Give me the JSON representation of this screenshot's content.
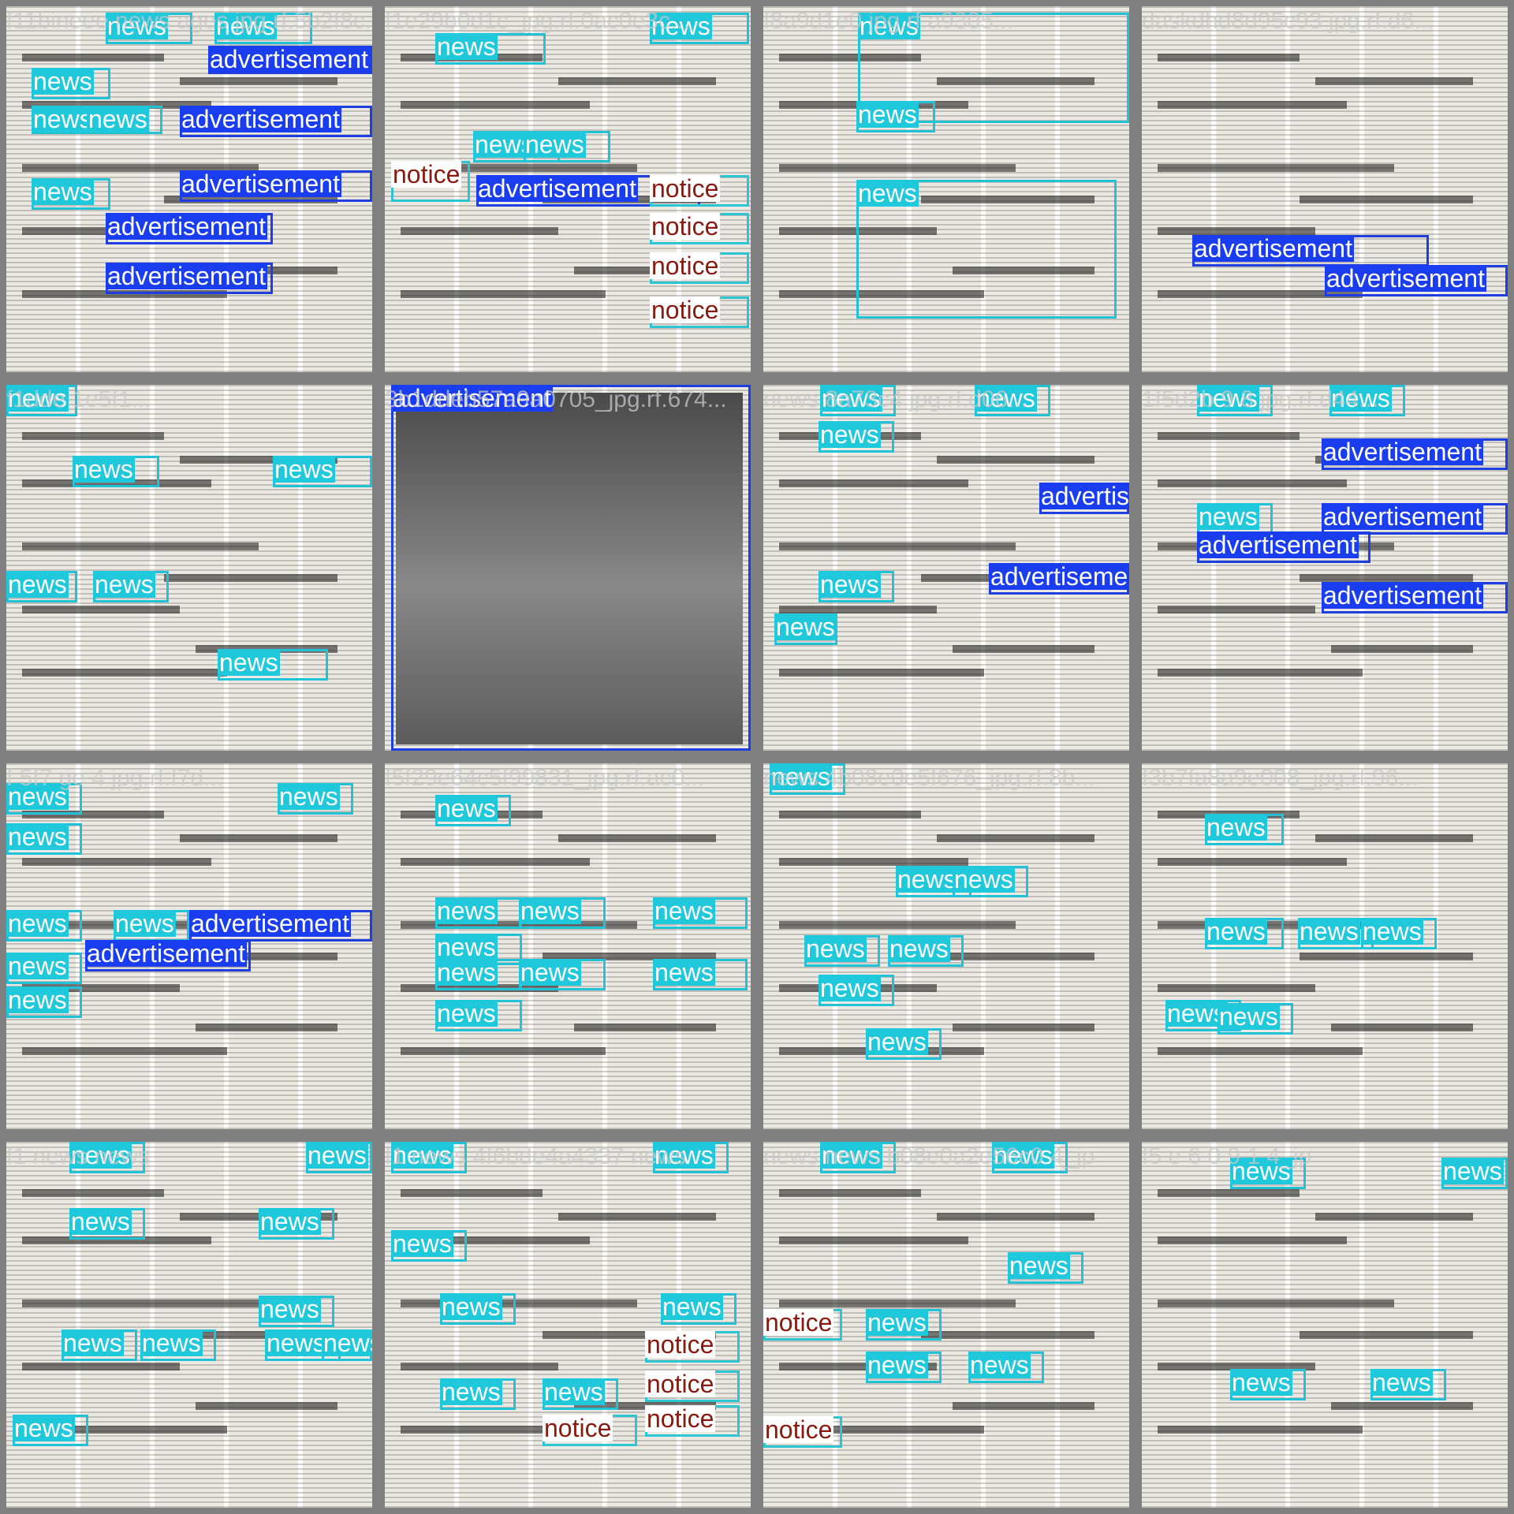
{
  "colors": {
    "background": "#808080",
    "news": "#20c8dc",
    "advertisement": "#1a3df0",
    "notice_text": "#8a1a10"
  },
  "tiles": [
    {
      "title": "f11bineee news ages jpg.rf.5b2f8c...",
      "boxes": [
        {
          "cls": "news",
          "text": "news"
        },
        {
          "cls": "news",
          "text": "news"
        },
        {
          "cls": "advertisement",
          "text": "advertisement"
        },
        {
          "cls": "news",
          "text": "news"
        },
        {
          "cls": "news",
          "text": "news"
        },
        {
          "cls": "news",
          "text": "news"
        },
        {
          "cls": "advertisement",
          "text": "advertisement"
        },
        {
          "cls": "advertisement",
          "text": "advertisement"
        },
        {
          "cls": "news",
          "text": "news"
        },
        {
          "cls": "advertisement",
          "text": "advertisement"
        },
        {
          "cls": "advertisement",
          "text": "advertisement"
        }
      ]
    },
    {
      "title": "f1e29b0d1c_jpg.rf.0ac0e3c...",
      "boxes": [
        {
          "cls": "news",
          "text": "news"
        },
        {
          "cls": "news",
          "text": "news"
        },
        {
          "cls": "news",
          "text": "news"
        },
        {
          "cls": "news",
          "text": "news"
        },
        {
          "cls": "notice",
          "text": "notice"
        },
        {
          "cls": "advertisement",
          "text": "advertisement"
        },
        {
          "cls": "notice",
          "text": "notice"
        },
        {
          "cls": "notice",
          "text": "notice"
        },
        {
          "cls": "notice",
          "text": "notice"
        },
        {
          "cls": "notice",
          "text": "notice"
        }
      ]
    },
    {
      "title": "f8a9d1e0 jpg.rf.a9305...",
      "boxes": [
        {
          "cls": "news",
          "text": "news"
        },
        {
          "cls": "news",
          "text": "news"
        },
        {
          "cls": "news",
          "text": "news"
        }
      ]
    },
    {
      "title": "daskdhd8d95c93 jpg.rf.d6...",
      "boxes": [
        {
          "cls": "advertisement",
          "text": "advertisement"
        },
        {
          "cls": "advertisement",
          "text": "advertisement"
        }
      ]
    },
    {
      "title": "f1dde 1e5f1...",
      "boxes": [
        {
          "cls": "news",
          "text": "news"
        },
        {
          "cls": "news",
          "text": "news"
        },
        {
          "cls": "news",
          "text": "news"
        },
        {
          "cls": "news",
          "text": "news"
        },
        {
          "cls": "news",
          "text": "news"
        },
        {
          "cls": "news",
          "text": "news"
        }
      ]
    },
    {
      "title": "3b1ddeb57a9a0705_jpg.rf.674...",
      "boxes": [
        {
          "cls": "advertisement",
          "text": "advertisement"
        }
      ]
    },
    {
      "title": "news 8a73c4 jpg.rf.d06...",
      "boxes": [
        {
          "cls": "news",
          "text": "news"
        },
        {
          "cls": "news",
          "text": "news"
        },
        {
          "cls": "news",
          "text": "news"
        },
        {
          "cls": "advertisement",
          "text": "advertisement"
        },
        {
          "cls": "news",
          "text": "news"
        },
        {
          "cls": "advertisement",
          "text": "advertisement"
        },
        {
          "cls": "news",
          "text": "news"
        }
      ]
    },
    {
      "title": "1f5d2b 9 8 jpg.rf.d44...",
      "boxes": [
        {
          "cls": "news",
          "text": "news"
        },
        {
          "cls": "news",
          "text": "news"
        },
        {
          "cls": "advertisement",
          "text": "advertisement"
        },
        {
          "cls": "advertisement",
          "text": "advertisement"
        },
        {
          "cls": "news",
          "text": "news"
        },
        {
          "cls": "advertisement",
          "text": "advertisement"
        },
        {
          "cls": "advertisement",
          "text": "advertisement"
        }
      ]
    },
    {
      "title": "f 5f7 ge 4 jpg.rf.f7d...",
      "boxes": [
        {
          "cls": "news",
          "text": "news"
        },
        {
          "cls": "news",
          "text": "news"
        },
        {
          "cls": "news",
          "text": "news"
        },
        {
          "cls": "news",
          "text": "news"
        },
        {
          "cls": "news",
          "text": "news"
        },
        {
          "cls": "advertisement",
          "text": "advertisement"
        },
        {
          "cls": "news",
          "text": "news"
        },
        {
          "cls": "advertisement",
          "text": "advertisement"
        },
        {
          "cls": "news",
          "text": "news"
        }
      ]
    },
    {
      "title": "f5f29e64c5f99831_jpg.rf.ac0...",
      "boxes": [
        {
          "cls": "news",
          "text": "news"
        },
        {
          "cls": "news",
          "text": "news"
        },
        {
          "cls": "news",
          "text": "news"
        },
        {
          "cls": "news",
          "text": "news"
        },
        {
          "cls": "news",
          "text": "news"
        },
        {
          "cls": "news",
          "text": "news"
        },
        {
          "cls": "news",
          "text": "news"
        },
        {
          "cls": "news",
          "text": "news"
        },
        {
          "cls": "news",
          "text": "news"
        }
      ]
    },
    {
      "title": "news 4b08e0e5f676_jpg.rf.8b...",
      "boxes": [
        {
          "cls": "news",
          "text": "news"
        },
        {
          "cls": "news",
          "text": "news"
        },
        {
          "cls": "news",
          "text": "news"
        },
        {
          "cls": "news",
          "text": "news"
        },
        {
          "cls": "news",
          "text": "news"
        },
        {
          "cls": "news",
          "text": "news"
        },
        {
          "cls": "news",
          "text": "news"
        }
      ]
    },
    {
      "title": "f3b7fa8a9e008_jpg.rf.96...",
      "boxes": [
        {
          "cls": "news",
          "text": "news"
        },
        {
          "cls": "news",
          "text": "news"
        },
        {
          "cls": "news",
          "text": "news"
        },
        {
          "cls": "news",
          "text": "news"
        },
        {
          "cls": "news",
          "text": "news"
        },
        {
          "cls": "news",
          "text": "news"
        }
      ]
    },
    {
      "title": "f1 news news",
      "boxes": [
        {
          "cls": "news",
          "text": "news"
        },
        {
          "cls": "news",
          "text": "news"
        },
        {
          "cls": "news",
          "text": "news"
        },
        {
          "cls": "news",
          "text": "news"
        },
        {
          "cls": "news",
          "text": "news"
        },
        {
          "cls": "news",
          "text": "news"
        },
        {
          "cls": "news",
          "text": "news"
        },
        {
          "cls": "news",
          "text": "news"
        },
        {
          "cls": "news",
          "text": "news"
        },
        {
          "cls": "news",
          "text": "news"
        }
      ]
    },
    {
      "title": "f1 news 4f6bde4a4337 news",
      "boxes": [
        {
          "cls": "news",
          "text": "news"
        },
        {
          "cls": "news",
          "text": "news"
        },
        {
          "cls": "news",
          "text": "news"
        },
        {
          "cls": "news",
          "text": "news"
        },
        {
          "cls": "news",
          "text": "news"
        },
        {
          "cls": "notice",
          "text": "notice"
        },
        {
          "cls": "notice",
          "text": "notice"
        },
        {
          "cls": "news",
          "text": "news"
        },
        {
          "cls": "news",
          "text": "news"
        },
        {
          "cls": "notice",
          "text": "notice"
        },
        {
          "cls": "notice",
          "text": "notice"
        }
      ]
    },
    {
      "title": "news news b08e0a2e56c0 4_jp",
      "boxes": [
        {
          "cls": "news",
          "text": "news"
        },
        {
          "cls": "news",
          "text": "news"
        },
        {
          "cls": "news",
          "text": "news"
        },
        {
          "cls": "notice",
          "text": "notice"
        },
        {
          "cls": "news",
          "text": "news"
        },
        {
          "cls": "news",
          "text": "news"
        },
        {
          "cls": "news",
          "text": "news"
        },
        {
          "cls": "notice",
          "text": "notice"
        }
      ]
    },
    {
      "title": "f5 e 6 0 9 1 4_jp",
      "boxes": [
        {
          "cls": "news",
          "text": "news"
        },
        {
          "cls": "news",
          "text": "news"
        },
        {
          "cls": "news",
          "text": "news"
        },
        {
          "cls": "news",
          "text": "news"
        }
      ]
    }
  ]
}
